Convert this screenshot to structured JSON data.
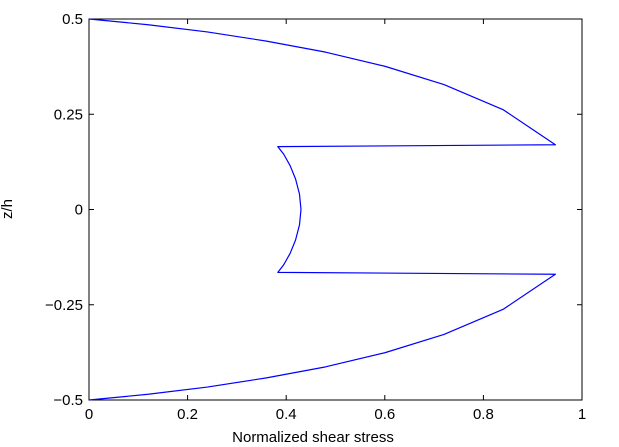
{
  "chart_data": {
    "type": "line",
    "title": "",
    "xlabel": "Normalized shear stress",
    "ylabel": "z/h",
    "xlim": [
      0,
      1
    ],
    "ylim": [
      -0.5,
      0.5
    ],
    "xticks": [
      0,
      0.2,
      0.4,
      0.6,
      0.8,
      1
    ],
    "xtick_labels": [
      "0",
      "0.2",
      "0.4",
      "0.6",
      "0.8",
      "1"
    ],
    "yticks": [
      -0.5,
      -0.25,
      0,
      0.25,
      0.5
    ],
    "ytick_labels": [
      "−0.5",
      "−0.25",
      "0",
      "0.25",
      "0.5"
    ],
    "grid": false,
    "series": [
      {
        "color": "#0000ff",
        "x": [
          0,
          0.12,
          0.24,
          0.36,
          0.48,
          0.6,
          0.72,
          0.84,
          0.946,
          0.383,
          0.395,
          0.408,
          0.419,
          0.427,
          0.43,
          0.427,
          0.419,
          0.408,
          0.395,
          0.383,
          0.946,
          0.84,
          0.72,
          0.6,
          0.48,
          0.36,
          0.24,
          0.12,
          0
        ],
        "y": [
          0.5,
          0.485,
          0.466,
          0.442,
          0.413,
          0.376,
          0.328,
          0.262,
          0.17,
          0.165,
          0.145,
          0.115,
          0.08,
          0.04,
          0,
          -0.04,
          -0.08,
          -0.115,
          -0.145,
          -0.165,
          -0.17,
          -0.262,
          -0.328,
          -0.376,
          -0.413,
          -0.442,
          -0.466,
          -0.485,
          -0.5
        ]
      }
    ]
  }
}
